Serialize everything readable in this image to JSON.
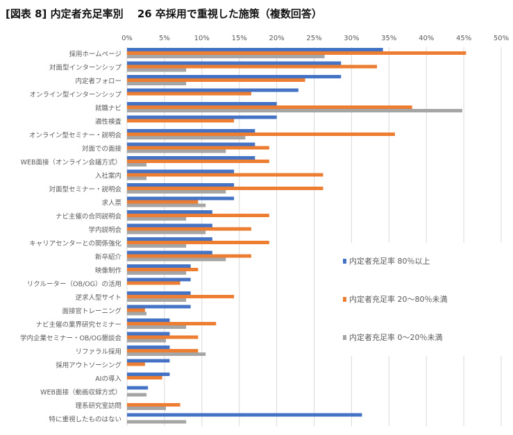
{
  "chart_data": {
    "type": "bar",
    "orientation": "horizontal",
    "title": "[図表 8] 内定者充足率別　 26 卒採用で重視した施策（複数回答）",
    "xlim": [
      0,
      50
    ],
    "xticks": [
      "0%",
      "5%",
      "10%",
      "15%",
      "20%",
      "25%",
      "30%",
      "35%",
      "40%",
      "45%",
      "50%"
    ],
    "grid": true,
    "legend_placement": "right",
    "categories": [
      "採用ホームページ",
      "対面型インターンシップ",
      "内定者フォロー",
      "オンライン型インターンシップ",
      "就職ナビ",
      "適性検査",
      "オンライン型セミナー・説明会",
      "対面での面接",
      "WEB面接（オンライン会議方式）",
      "入社案内",
      "対面型セミナー・説明会",
      "求人票",
      "ナビ主催の合同説明会",
      "学内説明会",
      "キャリアセンターとの関係強化",
      "新卒紹介",
      "映像制作",
      "リクルーター（OB/OG）の活用",
      "逆求人型サイト",
      "面接官トレーニング",
      "ナビ主催の業界研究セミナー",
      "学内企業セミナー・OB/OG懇談会",
      "リファラル採用",
      "採用アウトソーシング",
      "AIの導入",
      "WEB面接（動画収録方式）",
      "理系研究室訪問",
      "特に重視したものはない"
    ],
    "series": [
      {
        "name": "内定者充足率 80％以上",
        "color": "#4472C4",
        "values": [
          34.2,
          28.6,
          28.6,
          22.9,
          20.0,
          20.0,
          17.1,
          17.1,
          17.1,
          14.3,
          14.3,
          14.3,
          11.4,
          11.4,
          11.4,
          11.4,
          8.5,
          8.5,
          8.5,
          8.5,
          5.7,
          5.7,
          5.7,
          5.7,
          5.7,
          2.8,
          0,
          31.4
        ]
      },
      {
        "name": "内定者充足率 20～80％未満",
        "color": "#ED7D31",
        "values": [
          45.3,
          33.4,
          23.8,
          16.6,
          38.1,
          14.3,
          35.8,
          19.0,
          19.0,
          26.2,
          26.2,
          9.5,
          19.0,
          16.6,
          19.0,
          16.6,
          9.5,
          7.1,
          14.3,
          2.4,
          11.9,
          9.5,
          9.5,
          2.4,
          4.7,
          0,
          7.1,
          0
        ]
      },
      {
        "name": "内定者充足率 0～20％未満",
        "color": "#A5A5A5",
        "values": [
          26.4,
          7.9,
          7.9,
          0,
          44.8,
          0,
          15.8,
          13.2,
          2.6,
          2.6,
          13.2,
          10.5,
          7.9,
          10.5,
          7.9,
          13.2,
          7.9,
          0,
          7.9,
          2.6,
          7.9,
          5.2,
          10.5,
          0,
          0,
          2.6,
          5.2,
          7.9
        ]
      }
    ]
  }
}
